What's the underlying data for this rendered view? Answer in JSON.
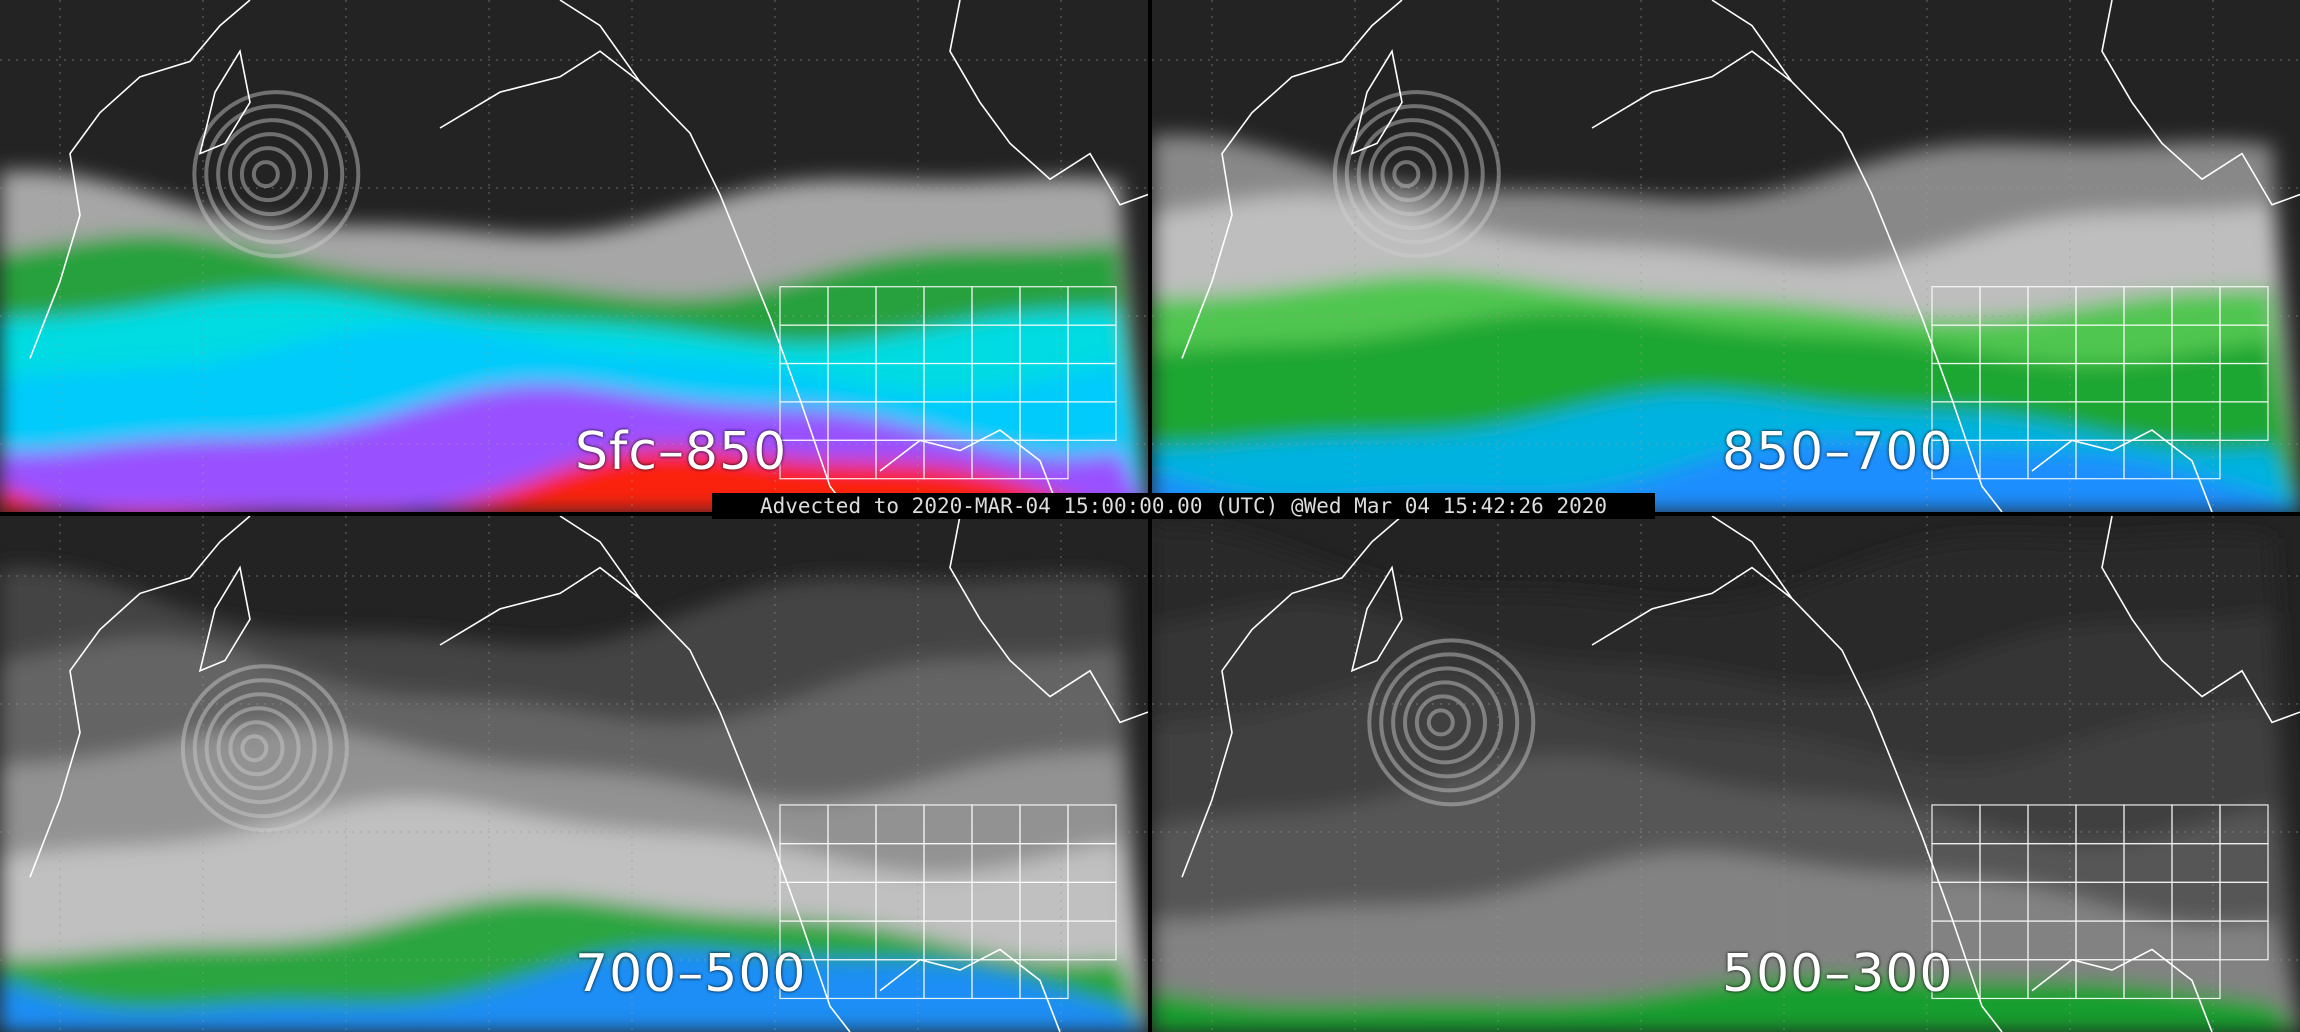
{
  "panels": [
    {
      "id": "sfc-850",
      "label": "Sfc–850",
      "palette": [
        "#ff1e00",
        "#b43cff",
        "#00c8ff",
        "#00e6ff",
        "#12a02a",
        "#bdbdbd"
      ]
    },
    {
      "id": "850-700",
      "label": "850–700",
      "palette": [
        "#1e8cff",
        "#00b4ff",
        "#12a02a",
        "#3cc83c",
        "#c8c8c8",
        "#9a9a9a"
      ]
    },
    {
      "id": "700-500",
      "label": "700–500",
      "palette": [
        "#1e8cff",
        "#12a02a",
        "#c8c8c8",
        "#9a9a9a",
        "#6a6a6a",
        "#4a4a4a"
      ]
    },
    {
      "id": "500-300",
      "label": "500–300",
      "palette": [
        "#12a02a",
        "#8a8a8a",
        "#5a5a5a",
        "#444444",
        "#363636",
        "#2c2c2c"
      ]
    }
  ],
  "banner": "Advected to 2020-MAR-04 15:00:00.00 (UTC) @Wed Mar 04 15:42:26 2020",
  "colors": {
    "coastline": "#ffffff",
    "background": "#232323",
    "grid": "#9a9a9a"
  }
}
